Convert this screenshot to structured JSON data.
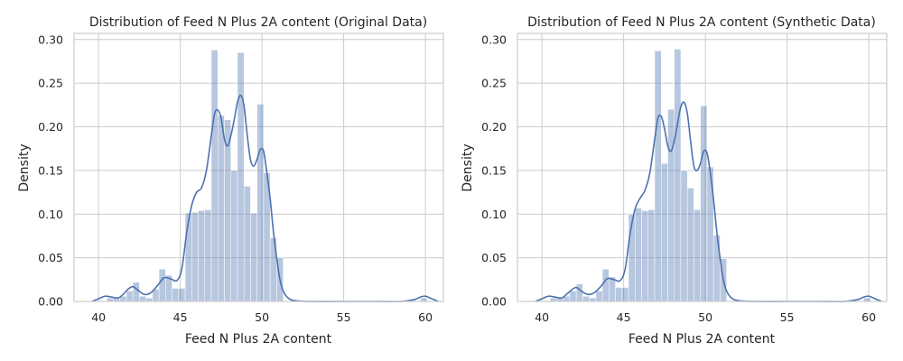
{
  "chart_data": [
    {
      "type": "histogram",
      "title": "Distribution of Feed N Plus 2A content (Original Data)",
      "xlabel": "Feed N Plus 2A content",
      "ylabel": "Density",
      "xlim": [
        38.5,
        61.1
      ],
      "ylim": [
        0,
        0.307
      ],
      "xticks": [
        40,
        45,
        50,
        55,
        60
      ],
      "yticks": [
        0.0,
        0.05,
        0.1,
        0.15,
        0.2,
        0.25,
        0.3
      ],
      "xtick_labels": [
        "40",
        "45",
        "50",
        "55",
        "60"
      ],
      "ytick_labels": [
        "0.00",
        "0.05",
        "0.10",
        "0.15",
        "0.20",
        "0.25",
        "0.30"
      ],
      "grid": true,
      "bin_width": 0.4,
      "bins": [
        {
          "x": 40.7,
          "density": 0.004
        },
        {
          "x": 41.1,
          "density": 0.004
        },
        {
          "x": 41.5,
          "density": 0.006
        },
        {
          "x": 41.9,
          "density": 0.012
        },
        {
          "x": 42.3,
          "density": 0.022
        },
        {
          "x": 42.7,
          "density": 0.006
        },
        {
          "x": 43.1,
          "density": 0.004
        },
        {
          "x": 43.5,
          "density": 0.014
        },
        {
          "x": 43.9,
          "density": 0.037
        },
        {
          "x": 44.3,
          "density": 0.03
        },
        {
          "x": 44.7,
          "density": 0.015
        },
        {
          "x": 45.1,
          "density": 0.015
        },
        {
          "x": 45.5,
          "density": 0.101
        },
        {
          "x": 45.9,
          "density": 0.102
        },
        {
          "x": 46.3,
          "density": 0.104
        },
        {
          "x": 46.7,
          "density": 0.105
        },
        {
          "x": 47.1,
          "density": 0.288
        },
        {
          "x": 47.5,
          "density": 0.213
        },
        {
          "x": 47.9,
          "density": 0.208
        },
        {
          "x": 48.3,
          "density": 0.15
        },
        {
          "x": 48.7,
          "density": 0.285
        },
        {
          "x": 49.1,
          "density": 0.132
        },
        {
          "x": 49.5,
          "density": 0.101
        },
        {
          "x": 49.9,
          "density": 0.226
        },
        {
          "x": 50.3,
          "density": 0.147
        },
        {
          "x": 50.7,
          "density": 0.073
        },
        {
          "x": 51.1,
          "density": 0.05
        },
        {
          "x": 59.9,
          "density": 0.004
        }
      ],
      "kde": {
        "x": [
          39.6,
          40.0,
          40.4,
          40.8,
          41.2,
          41.5,
          41.8,
          42.1,
          42.4,
          42.8,
          43.2,
          43.6,
          44.0,
          44.4,
          44.8,
          45.1,
          45.4,
          45.7,
          46.0,
          46.3,
          46.6,
          46.9,
          47.1,
          47.3,
          47.5,
          47.7,
          47.9,
          48.1,
          48.3,
          48.5,
          48.7,
          48.9,
          49.1,
          49.3,
          49.5,
          49.7,
          49.9,
          50.1,
          50.3,
          50.5,
          50.7,
          50.9,
          51.1,
          51.3,
          51.6,
          52.0,
          53.0,
          55.0,
          57.0,
          58.5,
          59.3,
          59.7,
          60.0,
          60.4,
          60.8
        ],
        "density": [
          0.0,
          0.003,
          0.006,
          0.005,
          0.004,
          0.008,
          0.014,
          0.017,
          0.013,
          0.008,
          0.01,
          0.018,
          0.027,
          0.026,
          0.024,
          0.038,
          0.08,
          0.11,
          0.125,
          0.13,
          0.15,
          0.19,
          0.215,
          0.219,
          0.21,
          0.186,
          0.178,
          0.19,
          0.208,
          0.228,
          0.236,
          0.224,
          0.19,
          0.162,
          0.155,
          0.163,
          0.174,
          0.172,
          0.147,
          0.118,
          0.08,
          0.05,
          0.025,
          0.012,
          0.004,
          0.001,
          0.0,
          0.0,
          0.0,
          0.0,
          0.002,
          0.005,
          0.006,
          0.003,
          0.0
        ]
      }
    },
    {
      "type": "histogram",
      "title": "Distribution of Feed N Plus 2A content (Synthetic Data)",
      "xlabel": "Feed N Plus 2A content",
      "ylabel": "Density",
      "xlim": [
        38.5,
        61.1
      ],
      "ylim": [
        0,
        0.307
      ],
      "xticks": [
        40,
        45,
        50,
        55,
        60
      ],
      "yticks": [
        0.0,
        0.05,
        0.1,
        0.15,
        0.2,
        0.25,
        0.3
      ],
      "xtick_labels": [
        "40",
        "45",
        "50",
        "55",
        "60"
      ],
      "ytick_labels": [
        "0.00",
        "0.05",
        "0.10",
        "0.15",
        "0.20",
        "0.25",
        "0.30"
      ],
      "grid": true,
      "bin_width": 0.4,
      "bins": [
        {
          "x": 40.7,
          "density": 0.004
        },
        {
          "x": 41.1,
          "density": 0.004
        },
        {
          "x": 41.5,
          "density": 0.006
        },
        {
          "x": 41.9,
          "density": 0.012
        },
        {
          "x": 42.3,
          "density": 0.02
        },
        {
          "x": 42.7,
          "density": 0.006
        },
        {
          "x": 43.1,
          "density": 0.004
        },
        {
          "x": 43.5,
          "density": 0.012
        },
        {
          "x": 43.9,
          "density": 0.037
        },
        {
          "x": 44.3,
          "density": 0.028
        },
        {
          "x": 44.7,
          "density": 0.016
        },
        {
          "x": 45.1,
          "density": 0.016
        },
        {
          "x": 45.5,
          "density": 0.1
        },
        {
          "x": 45.9,
          "density": 0.107
        },
        {
          "x": 46.3,
          "density": 0.104
        },
        {
          "x": 46.7,
          "density": 0.105
        },
        {
          "x": 47.1,
          "density": 0.287
        },
        {
          "x": 47.5,
          "density": 0.158
        },
        {
          "x": 47.9,
          "density": 0.22
        },
        {
          "x": 48.3,
          "density": 0.289
        },
        {
          "x": 48.7,
          "density": 0.15
        },
        {
          "x": 49.1,
          "density": 0.13
        },
        {
          "x": 49.5,
          "density": 0.105
        },
        {
          "x": 49.9,
          "density": 0.224
        },
        {
          "x": 50.3,
          "density": 0.154
        },
        {
          "x": 50.7,
          "density": 0.076
        },
        {
          "x": 51.1,
          "density": 0.049
        },
        {
          "x": 59.9,
          "density": 0.004
        }
      ],
      "kde": {
        "x": [
          39.6,
          40.0,
          40.4,
          40.8,
          41.2,
          41.5,
          41.8,
          42.1,
          42.4,
          42.8,
          43.2,
          43.6,
          44.0,
          44.4,
          44.8,
          45.1,
          45.4,
          45.7,
          46.0,
          46.3,
          46.6,
          46.9,
          47.1,
          47.3,
          47.5,
          47.7,
          47.9,
          48.1,
          48.3,
          48.5,
          48.7,
          48.9,
          49.1,
          49.3,
          49.5,
          49.7,
          49.9,
          50.1,
          50.3,
          50.5,
          50.7,
          50.9,
          51.1,
          51.3,
          51.6,
          52.0,
          53.0,
          55.0,
          57.0,
          58.5,
          59.3,
          59.7,
          60.0,
          60.4,
          60.8
        ],
        "density": [
          0.0,
          0.003,
          0.006,
          0.005,
          0.004,
          0.008,
          0.013,
          0.016,
          0.012,
          0.008,
          0.01,
          0.017,
          0.026,
          0.025,
          0.024,
          0.038,
          0.078,
          0.106,
          0.118,
          0.127,
          0.147,
          0.186,
          0.21,
          0.212,
          0.198,
          0.178,
          0.172,
          0.184,
          0.204,
          0.223,
          0.228,
          0.215,
          0.183,
          0.155,
          0.15,
          0.158,
          0.172,
          0.17,
          0.148,
          0.117,
          0.08,
          0.05,
          0.025,
          0.012,
          0.004,
          0.001,
          0.0,
          0.0,
          0.0,
          0.0,
          0.002,
          0.005,
          0.006,
          0.003,
          0.0
        ]
      }
    }
  ]
}
